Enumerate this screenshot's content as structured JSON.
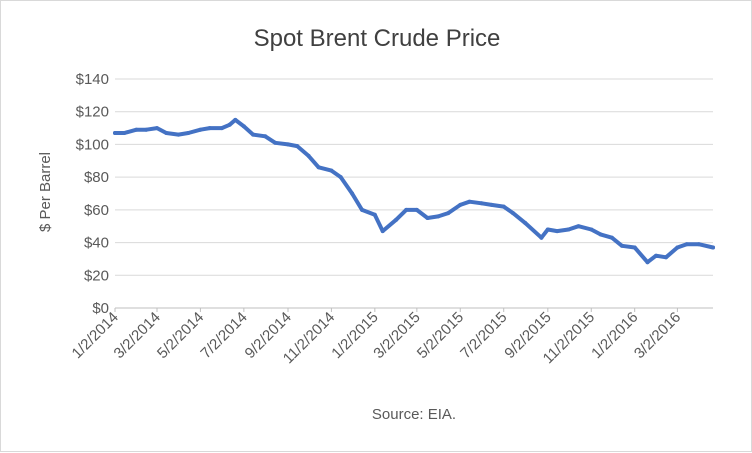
{
  "chart_data": {
    "type": "line",
    "title": "Spot Brent Crude Price",
    "xlabel": "",
    "ylabel": "$ Per Barrel",
    "source": "Source: EIA.",
    "ylim": [
      0,
      140
    ],
    "yticks": [
      0,
      20,
      40,
      60,
      80,
      100,
      120,
      140
    ],
    "ytick_labels": [
      "$0",
      "$20",
      "$40",
      "$60",
      "$80",
      "$100",
      "$120",
      "$140"
    ],
    "xlim": [
      "2014-01-02",
      "2016-04-21"
    ],
    "xticks": [
      "2014-01-02",
      "2014-03-02",
      "2014-05-02",
      "2014-07-02",
      "2014-09-02",
      "2014-11-02",
      "2015-01-02",
      "2015-03-02",
      "2015-05-02",
      "2015-07-02",
      "2015-09-02",
      "2015-11-02",
      "2016-01-02",
      "2016-03-02"
    ],
    "xtick_labels": [
      "1/2/2014",
      "3/2/2014",
      "5/2/2014",
      "7/2/2014",
      "9/2/2014",
      "11/2/2014",
      "1/2/2015",
      "3/2/2015",
      "5/2/2015",
      "7/2/2015",
      "9/2/2015",
      "11/2/2015",
      "1/2/2016",
      "3/2/2016"
    ],
    "grid": true,
    "line_color": "#4472c4",
    "grid_color": "#d9d9d9",
    "series": [
      {
        "x": [
          "2014-01-02",
          "2014-01-15",
          "2014-02-01",
          "2014-02-15",
          "2014-03-02",
          "2014-03-15",
          "2014-04-01",
          "2014-04-15",
          "2014-05-02",
          "2014-05-15",
          "2014-06-01",
          "2014-06-12",
          "2014-06-20",
          "2014-07-02",
          "2014-07-15",
          "2014-08-01",
          "2014-08-15",
          "2014-09-02",
          "2014-09-15",
          "2014-10-01",
          "2014-10-15",
          "2014-11-02",
          "2014-11-15",
          "2014-12-01",
          "2014-12-15",
          "2015-01-02",
          "2015-01-13",
          "2015-02-01",
          "2015-02-15",
          "2015-03-02",
          "2015-03-17",
          "2015-04-01",
          "2015-04-15",
          "2015-05-02",
          "2015-05-15",
          "2015-06-01",
          "2015-06-15",
          "2015-07-02",
          "2015-07-15",
          "2015-08-01",
          "2015-08-24",
          "2015-09-02",
          "2015-09-15",
          "2015-10-01",
          "2015-10-15",
          "2015-11-02",
          "2015-11-15",
          "2015-12-01",
          "2015-12-15",
          "2016-01-02",
          "2016-01-20",
          "2016-02-01",
          "2016-02-15",
          "2016-03-02",
          "2016-03-15",
          "2016-04-01",
          "2016-04-21"
        ],
        "values": [
          107,
          107,
          109,
          109,
          110,
          107,
          106,
          107,
          109,
          110,
          110,
          112,
          115,
          111,
          106,
          105,
          101,
          100,
          99,
          93,
          86,
          84,
          80,
          70,
          60,
          57,
          47,
          54,
          60,
          60,
          55,
          56,
          58,
          63,
          65,
          64,
          63,
          62,
          58,
          52,
          43,
          48,
          47,
          48,
          50,
          48,
          45,
          43,
          38,
          37,
          28,
          32,
          31,
          37,
          39,
          39,
          37
        ]
      }
    ]
  }
}
